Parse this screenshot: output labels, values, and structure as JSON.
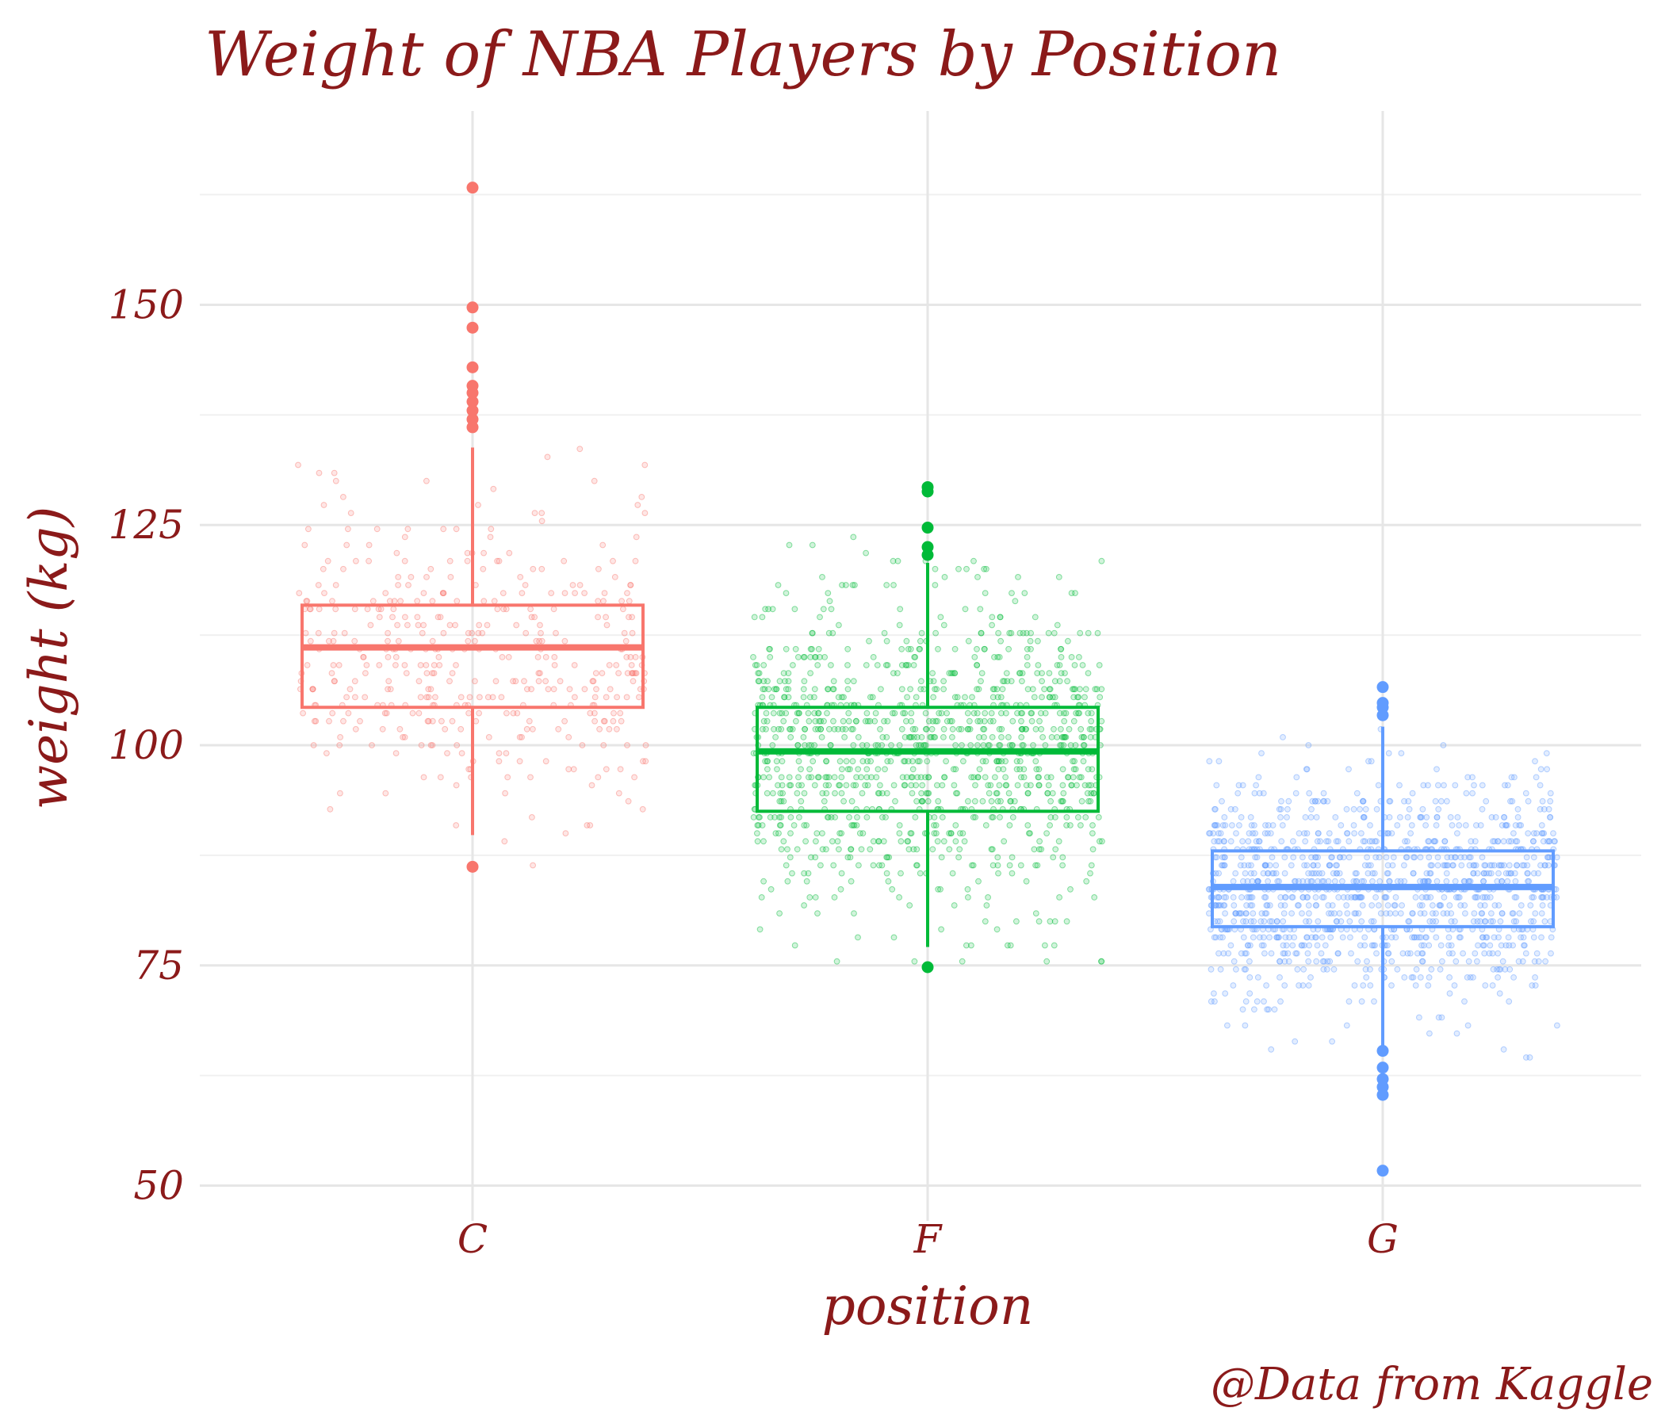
{
  "colors": {
    "text": "#8b1a1a",
    "grid_major": "#e6e6e6",
    "grid_minor": "#f0f0f0",
    "C": "#f8766d",
    "F": "#00ba38",
    "G": "#619cff"
  },
  "chart_data": {
    "type": "boxplot",
    "title": "Weight of NBA Players by Position",
    "xlabel": "position",
    "ylabel": "weight (kg)",
    "caption": "@Data from Kaggle",
    "categories": [
      "C",
      "F",
      "G"
    ],
    "ylim": [
      46,
      172
    ],
    "yticks": [
      50,
      75,
      100,
      125,
      150
    ],
    "yticks_minor": [
      62.5,
      87.5,
      112.5,
      137.5,
      162.5
    ],
    "grid": true,
    "legend": "none",
    "boxes": [
      {
        "category": "C",
        "q1": 104.3,
        "median": 111.1,
        "q3": 115.9,
        "whisker_low": 89.8,
        "whisker_high": 133.8,
        "outliers": [
          86.2,
          136.1,
          137.0,
          138.0,
          139.0,
          140.0,
          140.8,
          142.9,
          147.4,
          149.7,
          163.3
        ],
        "jitter": {
          "count": 420,
          "min": 86,
          "max": 163,
          "median": 111.1,
          "iqr": [
            104.3,
            115.9
          ],
          "seed": 11
        }
      },
      {
        "category": "F",
        "q1": 92.5,
        "median": 99.3,
        "q3": 104.3,
        "whisker_low": 77.1,
        "whisker_high": 120.7,
        "outliers": [
          74.8,
          121.6,
          122.5,
          124.7,
          128.8,
          129.3
        ],
        "jitter": {
          "count": 1100,
          "min": 75,
          "max": 129,
          "median": 99.3,
          "iqr": [
            92.5,
            104.3
          ],
          "seed": 23
        }
      },
      {
        "category": "G",
        "q1": 79.4,
        "median": 83.9,
        "q3": 88.0,
        "whisker_low": 65.8,
        "whisker_high": 102.1,
        "outliers": [
          51.7,
          60.3,
          61.2,
          62.1,
          63.4,
          65.3,
          103.4,
          104.3,
          104.8,
          106.6
        ],
        "jitter": {
          "count": 1150,
          "min": 52,
          "max": 106,
          "median": 83.9,
          "iqr": [
            79.4,
            88.0
          ],
          "seed": 37
        }
      }
    ]
  }
}
